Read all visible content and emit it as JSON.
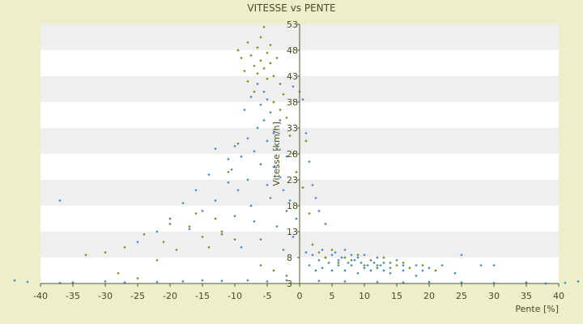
{
  "chart_data": {
    "type": "scatter",
    "title": "VITESSE vs PENTE",
    "xlabel": "Pente [%]",
    "ylabel": "Vitesse [km/h]",
    "xlim": [
      -40,
      40
    ],
    "ylim": [
      3,
      53
    ],
    "x_ticks": [
      -40,
      -35,
      -30,
      -25,
      -20,
      -15,
      -10,
      -5,
      0,
      5,
      10,
      15,
      20,
      25,
      30,
      35,
      40
    ],
    "y_ticks": [
      3,
      8,
      13,
      18,
      23,
      28,
      33,
      38,
      43,
      48,
      53
    ],
    "grid": "horizontal alternating bands",
    "legend": "none",
    "colors": {
      "plot_background": "#ffffff",
      "band": "#efefef",
      "page_background": "#ecefc9",
      "axis": "#555533",
      "series_a": "#3d8fd6",
      "series_b": "#8c8a1e"
    },
    "series": [
      {
        "color": "#3d8fd6",
        "points": [
          [
            -44,
            3.6
          ],
          [
            -42,
            3.3
          ],
          [
            -37,
            3.1
          ],
          [
            -35,
            3.2
          ],
          [
            -30,
            3.4
          ],
          [
            -27,
            3.2
          ],
          [
            -22,
            3.3
          ],
          [
            -18,
            3.4
          ],
          [
            -15,
            3.6
          ],
          [
            -12,
            3.5
          ],
          [
            -8,
            3.6
          ],
          [
            -5,
            3.4
          ],
          [
            -2,
            3.6
          ],
          [
            3,
            3.5
          ],
          [
            7,
            3.4
          ],
          [
            12,
            3.3
          ],
          [
            16,
            3.2
          ],
          [
            20,
            3.3
          ],
          [
            25,
            3.2
          ],
          [
            30,
            3.1
          ],
          [
            35,
            3.2
          ],
          [
            38,
            3.0
          ],
          [
            41,
            3.1
          ],
          [
            43,
            3.4
          ],
          [
            -37,
            19.0
          ],
          [
            -25,
            11.0
          ],
          [
            -22,
            13.0
          ],
          [
            -20,
            15.5
          ],
          [
            -18,
            18.5
          ],
          [
            -17,
            13.5
          ],
          [
            -16,
            21.0
          ],
          [
            -15,
            17.0
          ],
          [
            -14,
            24.0
          ],
          [
            -13,
            29.0
          ],
          [
            -13,
            19.0
          ],
          [
            -12,
            12.5
          ],
          [
            -11,
            22.5
          ],
          [
            -11,
            27.0
          ],
          [
            -10.5,
            25.0
          ],
          [
            -10,
            16.0
          ],
          [
            -10,
            29.5
          ],
          [
            -9.5,
            21.0
          ],
          [
            -9,
            27.5
          ],
          [
            -9,
            10.0
          ],
          [
            -8.5,
            36.5
          ],
          [
            -8,
            23.0
          ],
          [
            -8,
            31.0
          ],
          [
            -7.5,
            18.0
          ],
          [
            -7.5,
            39.0
          ],
          [
            -7,
            28.5
          ],
          [
            -7,
            15.0
          ],
          [
            -6.5,
            33.0
          ],
          [
            -6.5,
            41.5
          ],
          [
            -6,
            37.5
          ],
          [
            -6,
            26.0
          ],
          [
            -6,
            11.5
          ],
          [
            -5.5,
            40.0
          ],
          [
            -5.5,
            34.5
          ],
          [
            -5,
            30.5
          ],
          [
            -5,
            22.0
          ],
          [
            -5,
            38.5
          ],
          [
            -4.5,
            36.0
          ],
          [
            -4.5,
            19.5
          ],
          [
            -4,
            32.0
          ],
          [
            -4,
            25.5
          ],
          [
            -3.5,
            29.0
          ],
          [
            -3.5,
            14.0
          ],
          [
            -3,
            34.5
          ],
          [
            -3,
            23.5
          ],
          [
            -2.5,
            21.0
          ],
          [
            -2.5,
            9.5
          ],
          [
            -2,
            27.5
          ],
          [
            -2,
            17.0
          ],
          [
            -1.5,
            19.0
          ],
          [
            -1,
            12.0
          ],
          [
            -1,
            41.0
          ],
          [
            -0.5,
            15.5
          ],
          [
            0.5,
            38.5
          ],
          [
            1,
            32.0
          ],
          [
            1.5,
            26.5
          ],
          [
            2,
            22.0
          ],
          [
            2.5,
            19.5
          ],
          [
            3,
            17.0
          ],
          [
            4,
            14.5
          ],
          [
            1,
            9.0
          ],
          [
            2,
            8.5
          ],
          [
            3,
            7.5
          ],
          [
            3.5,
            9.5
          ],
          [
            4,
            8.0
          ],
          [
            4.5,
            7.0
          ],
          [
            5,
            8.5
          ],
          [
            5.5,
            9.0
          ],
          [
            6,
            7.5
          ],
          [
            6.5,
            8.0
          ],
          [
            7,
            9.5
          ],
          [
            7.5,
            7.0
          ],
          [
            8,
            8.5
          ],
          [
            8.5,
            7.5
          ],
          [
            9,
            8.0
          ],
          [
            9.5,
            7.0
          ],
          [
            10,
            8.5
          ],
          [
            10.5,
            6.5
          ],
          [
            11,
            7.5
          ],
          [
            11.5,
            7.0
          ],
          [
            12,
            8.0
          ],
          [
            12.5,
            6.5
          ],
          [
            13,
            7.0
          ],
          [
            14,
            6.0
          ],
          [
            15,
            7.5
          ],
          [
            16,
            6.5
          ],
          [
            17,
            6.0
          ],
          [
            18,
            6.5
          ],
          [
            19,
            5.5
          ],
          [
            20,
            6.0
          ],
          [
            22,
            6.5
          ],
          [
            24,
            5.0
          ],
          [
            25,
            8.5
          ],
          [
            28,
            6.5
          ],
          [
            30,
            6.5
          ],
          [
            1.5,
            6.5
          ],
          [
            2.5,
            5.5
          ],
          [
            3.5,
            6.0
          ],
          [
            5,
            5.5
          ],
          [
            6,
            6.5
          ],
          [
            7,
            5.5
          ],
          [
            8,
            6.5
          ],
          [
            9,
            5.0
          ],
          [
            10,
            6.0
          ],
          [
            11,
            5.5
          ],
          [
            12,
            6.0
          ],
          [
            13,
            5.5
          ],
          [
            14,
            5.0
          ],
          [
            16,
            5.5
          ],
          [
            18,
            4.5
          ]
        ]
      },
      {
        "color": "#8c8a1e",
        "points": [
          [
            -33,
            8.5
          ],
          [
            -30,
            9.0
          ],
          [
            -27,
            10.0
          ],
          [
            -24,
            12.5
          ],
          [
            -21,
            11.0
          ],
          [
            -19,
            9.5
          ],
          [
            -17,
            14.0
          ],
          [
            -15,
            12.0
          ],
          [
            -13,
            15.5
          ],
          [
            -11,
            24.5
          ],
          [
            -10,
            11.5
          ],
          [
            -9.5,
            30.0
          ],
          [
            -9.5,
            48.0
          ],
          [
            -9,
            46.5
          ],
          [
            -8.5,
            44.0
          ],
          [
            -8,
            42.0
          ],
          [
            -8,
            49.5
          ],
          [
            -7.5,
            47.0
          ],
          [
            -7,
            45.0
          ],
          [
            -7,
            40.0
          ],
          [
            -6.5,
            48.5
          ],
          [
            -6.5,
            43.5
          ],
          [
            -6,
            46.0
          ],
          [
            -6,
            50.5
          ],
          [
            -5.5,
            44.5
          ],
          [
            -5.5,
            52.5
          ],
          [
            -5,
            47.5
          ],
          [
            -5,
            42.5
          ],
          [
            -4.5,
            45.5
          ],
          [
            -4.5,
            49.0
          ],
          [
            -4,
            43.0
          ],
          [
            -4,
            38.0
          ],
          [
            -3.5,
            46.5
          ],
          [
            -3,
            41.5
          ],
          [
            -3,
            36.5
          ],
          [
            -2.5,
            39.5
          ],
          [
            -2,
            35.0
          ],
          [
            -1.5,
            31.5
          ],
          [
            -1,
            28.0
          ],
          [
            -0.5,
            24.5
          ],
          [
            0,
            40.0
          ],
          [
            0.5,
            21.5
          ],
          [
            1,
            30.5
          ],
          [
            1.5,
            16.5
          ],
          [
            2,
            10.5
          ],
          [
            3,
            9.0
          ],
          [
            4,
            8.0
          ],
          [
            5,
            9.5
          ],
          [
            6,
            7.0
          ],
          [
            7,
            8.0
          ],
          [
            8,
            7.5
          ],
          [
            9,
            8.5
          ],
          [
            10,
            6.5
          ],
          [
            11,
            7.5
          ],
          [
            12,
            6.5
          ],
          [
            13,
            8.0
          ],
          [
            14,
            7.0
          ],
          [
            15,
            6.5
          ],
          [
            16,
            7.0
          ],
          [
            17,
            6.0
          ],
          [
            19,
            6.5
          ],
          [
            21,
            5.5
          ],
          [
            -14,
            10.0
          ],
          [
            -12,
            13.0
          ],
          [
            -16,
            16.5
          ],
          [
            -20,
            14.5
          ],
          [
            -22,
            7.5
          ],
          [
            -28,
            5.0
          ],
          [
            -25,
            4.0
          ],
          [
            -6,
            6.5
          ],
          [
            -4,
            5.5
          ],
          [
            -2,
            4.5
          ]
        ]
      }
    ]
  }
}
